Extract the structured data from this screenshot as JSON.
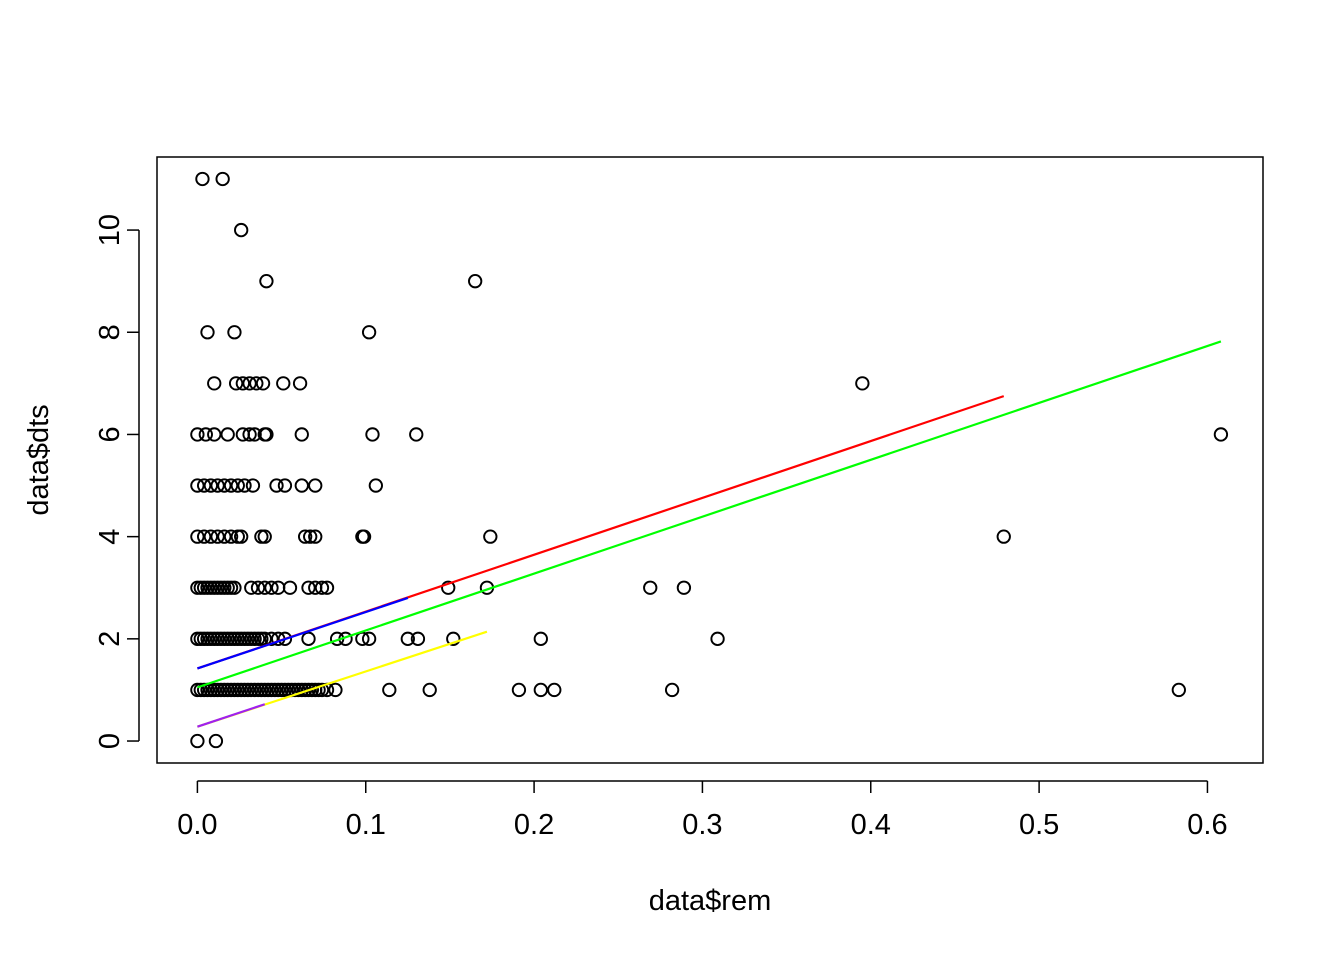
{
  "chart_data": {
    "type": "scatter",
    "title": "",
    "xlabel": "data$rem",
    "ylabel": "data$dts",
    "xlim": [
      -0.024,
      0.633
    ],
    "ylim": [
      -0.43,
      11.43
    ],
    "x_ticks": [
      0.0,
      0.1,
      0.2,
      0.3,
      0.4,
      0.5,
      0.6
    ],
    "x_tick_labels": [
      "0.0",
      "0.1",
      "0.2",
      "0.3",
      "0.4",
      "0.5",
      "0.6"
    ],
    "y_ticks": [
      0,
      2,
      4,
      6,
      8,
      10
    ],
    "y_tick_labels": [
      "0",
      "2",
      "4",
      "6",
      "8",
      "10"
    ],
    "grid": false,
    "legend": "none",
    "point_style": "open-circle",
    "point_color": "#000000",
    "series": [
      {
        "points": [
          [
            0.0,
            0
          ],
          [
            0.011,
            0
          ],
          [
            0.0,
            1
          ],
          [
            0.002,
            1
          ],
          [
            0.004,
            1
          ],
          [
            0.006,
            1
          ],
          [
            0.008,
            1
          ],
          [
            0.01,
            1
          ],
          [
            0.012,
            1
          ],
          [
            0.014,
            1
          ],
          [
            0.016,
            1
          ],
          [
            0.018,
            1
          ],
          [
            0.02,
            1
          ],
          [
            0.022,
            1
          ],
          [
            0.024,
            1
          ],
          [
            0.026,
            1
          ],
          [
            0.028,
            1
          ],
          [
            0.03,
            1
          ],
          [
            0.032,
            1
          ],
          [
            0.034,
            1
          ],
          [
            0.036,
            1
          ],
          [
            0.038,
            1
          ],
          [
            0.04,
            1
          ],
          [
            0.042,
            1
          ],
          [
            0.044,
            1
          ],
          [
            0.046,
            1
          ],
          [
            0.048,
            1
          ],
          [
            0.05,
            1
          ],
          [
            0.052,
            1
          ],
          [
            0.054,
            1
          ],
          [
            0.056,
            1
          ],
          [
            0.058,
            1
          ],
          [
            0.06,
            1
          ],
          [
            0.062,
            1
          ],
          [
            0.064,
            1
          ],
          [
            0.066,
            1
          ],
          [
            0.068,
            1
          ],
          [
            0.07,
            1
          ],
          [
            0.072,
            1
          ],
          [
            0.074,
            1
          ],
          [
            0.077,
            1
          ],
          [
            0.082,
            1
          ],
          [
            0.114,
            1
          ],
          [
            0.138,
            1
          ],
          [
            0.191,
            1
          ],
          [
            0.204,
            1
          ],
          [
            0.212,
            1
          ],
          [
            0.282,
            1
          ],
          [
            0.583,
            1
          ],
          [
            0.0,
            2
          ],
          [
            0.002,
            2
          ],
          [
            0.004,
            2
          ],
          [
            0.006,
            2
          ],
          [
            0.008,
            2
          ],
          [
            0.01,
            2
          ],
          [
            0.012,
            2
          ],
          [
            0.014,
            2
          ],
          [
            0.016,
            2
          ],
          [
            0.018,
            2
          ],
          [
            0.02,
            2
          ],
          [
            0.022,
            2
          ],
          [
            0.024,
            2
          ],
          [
            0.026,
            2
          ],
          [
            0.028,
            2
          ],
          [
            0.03,
            2
          ],
          [
            0.032,
            2
          ],
          [
            0.034,
            2
          ],
          [
            0.036,
            2
          ],
          [
            0.038,
            2
          ],
          [
            0.04,
            2
          ],
          [
            0.044,
            2
          ],
          [
            0.048,
            2
          ],
          [
            0.052,
            2
          ],
          [
            0.066,
            2
          ],
          [
            0.083,
            2
          ],
          [
            0.088,
            2
          ],
          [
            0.098,
            2
          ],
          [
            0.102,
            2
          ],
          [
            0.125,
            2
          ],
          [
            0.131,
            2
          ],
          [
            0.152,
            2
          ],
          [
            0.204,
            2
          ],
          [
            0.309,
            2
          ],
          [
            0.0,
            3
          ],
          [
            0.002,
            3
          ],
          [
            0.004,
            3
          ],
          [
            0.006,
            3
          ],
          [
            0.008,
            3
          ],
          [
            0.01,
            3
          ],
          [
            0.012,
            3
          ],
          [
            0.014,
            3
          ],
          [
            0.016,
            3
          ],
          [
            0.018,
            3
          ],
          [
            0.02,
            3
          ],
          [
            0.022,
            3
          ],
          [
            0.032,
            3
          ],
          [
            0.036,
            3
          ],
          [
            0.04,
            3
          ],
          [
            0.044,
            3
          ],
          [
            0.048,
            3
          ],
          [
            0.055,
            3
          ],
          [
            0.066,
            3
          ],
          [
            0.07,
            3
          ],
          [
            0.074,
            3
          ],
          [
            0.077,
            3
          ],
          [
            0.149,
            3
          ],
          [
            0.172,
            3
          ],
          [
            0.269,
            3
          ],
          [
            0.289,
            3
          ],
          [
            0.0,
            4
          ],
          [
            0.004,
            4
          ],
          [
            0.008,
            4
          ],
          [
            0.012,
            4
          ],
          [
            0.016,
            4
          ],
          [
            0.02,
            4
          ],
          [
            0.024,
            4
          ],
          [
            0.026,
            4
          ],
          [
            0.038,
            4
          ],
          [
            0.04,
            4
          ],
          [
            0.064,
            4
          ],
          [
            0.067,
            4
          ],
          [
            0.07,
            4
          ],
          [
            0.098,
            4
          ],
          [
            0.099,
            4
          ],
          [
            0.174,
            4
          ],
          [
            0.479,
            4
          ],
          [
            0.0,
            5
          ],
          [
            0.004,
            5
          ],
          [
            0.008,
            5
          ],
          [
            0.012,
            5
          ],
          [
            0.016,
            5
          ],
          [
            0.02,
            5
          ],
          [
            0.024,
            5
          ],
          [
            0.028,
            5
          ],
          [
            0.033,
            5
          ],
          [
            0.047,
            5
          ],
          [
            0.052,
            5
          ],
          [
            0.062,
            5
          ],
          [
            0.07,
            5
          ],
          [
            0.106,
            5
          ],
          [
            0.0,
            6
          ],
          [
            0.005,
            6
          ],
          [
            0.01,
            6
          ],
          [
            0.018,
            6
          ],
          [
            0.027,
            6
          ],
          [
            0.031,
            6
          ],
          [
            0.034,
            6
          ],
          [
            0.04,
            6
          ],
          [
            0.041,
            6
          ],
          [
            0.062,
            6
          ],
          [
            0.104,
            6
          ],
          [
            0.13,
            6
          ],
          [
            0.608,
            6
          ],
          [
            0.01,
            7
          ],
          [
            0.023,
            7
          ],
          [
            0.027,
            7
          ],
          [
            0.031,
            7
          ],
          [
            0.035,
            7
          ],
          [
            0.039,
            7
          ],
          [
            0.051,
            7
          ],
          [
            0.061,
            7
          ],
          [
            0.395,
            7
          ],
          [
            0.006,
            8
          ],
          [
            0.022,
            8
          ],
          [
            0.102,
            8
          ],
          [
            0.041,
            9
          ],
          [
            0.165,
            9
          ],
          [
            0.026,
            10
          ],
          [
            0.003,
            11
          ],
          [
            0.015,
            11
          ]
        ]
      }
    ],
    "lines": [
      {
        "color": "#ff0000",
        "x": [
          0.0,
          0.479
        ],
        "y": [
          1.42,
          6.75
        ]
      },
      {
        "color": "#0000ff",
        "x": [
          0.0,
          0.125
        ],
        "y": [
          1.42,
          2.8
        ]
      },
      {
        "color": "#00ff00",
        "x": [
          0.0,
          0.608
        ],
        "y": [
          1.05,
          7.82
        ]
      },
      {
        "color": "#ffff00",
        "x": [
          0.0,
          0.172
        ],
        "y": [
          0.28,
          2.14
        ]
      },
      {
        "color": "#a020f0",
        "x": [
          0.0,
          0.04
        ],
        "y": [
          0.28,
          0.72
        ]
      }
    ]
  }
}
